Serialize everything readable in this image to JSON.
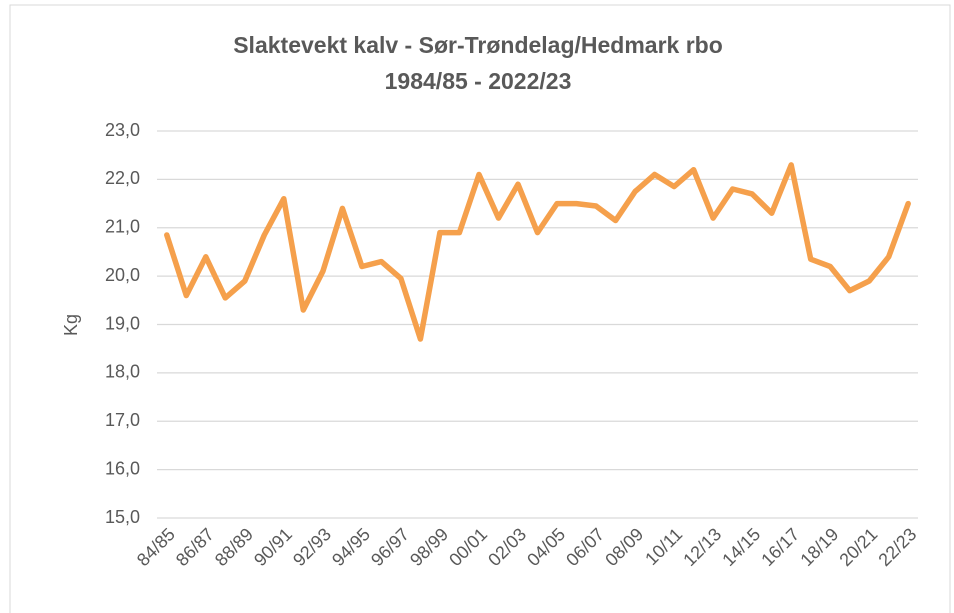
{
  "chart_data": {
    "type": "line",
    "title": "Slaktevekt kalv - Sør-Trøndelag/Hedmark rbo",
    "subtitle": "1984/85 - 2022/23",
    "y_label": "Kg",
    "categories": [
      "84/85",
      null,
      "86/87",
      null,
      "88/89",
      null,
      "90/91",
      null,
      "92/93",
      null,
      "94/95",
      null,
      "96/97",
      null,
      "98/99",
      null,
      "00/01",
      null,
      "02/03",
      null,
      "04/05",
      null,
      "06/07",
      null,
      "08/09",
      null,
      "10/11",
      null,
      "12/13",
      null,
      "14/15",
      null,
      "16/17",
      null,
      "18/19",
      null,
      "20/21",
      null,
      "22/23"
    ],
    "series": [
      {
        "name": "Slaktevekt",
        "color": "#f5a04c",
        "values": [
          20.85,
          19.6,
          20.4,
          19.55,
          19.9,
          20.85,
          21.6,
          19.3,
          20.1,
          21.4,
          20.2,
          20.3,
          19.95,
          18.7,
          20.9,
          20.9,
          22.1,
          21.2,
          21.9,
          20.9,
          21.5,
          21.5,
          21.45,
          21.15,
          21.75,
          22.1,
          21.85,
          22.2,
          21.2,
          21.8,
          21.7,
          21.3,
          22.3,
          20.35,
          20.2,
          19.7,
          19.9,
          20.4,
          21.5
        ]
      }
    ],
    "ylim": [
      15,
      23
    ],
    "yticks": [
      {
        "value": 15,
        "label": "15,0"
      },
      {
        "value": 16,
        "label": "16,0"
      },
      {
        "value": 17,
        "label": "17,0"
      },
      {
        "value": 18,
        "label": "18,0"
      },
      {
        "value": 19,
        "label": "19,0"
      },
      {
        "value": 20,
        "label": "20,0"
      },
      {
        "value": 21,
        "label": "21,0"
      },
      {
        "value": 22,
        "label": "22,0"
      },
      {
        "value": 23,
        "label": "23,0"
      }
    ],
    "grid": true
  }
}
